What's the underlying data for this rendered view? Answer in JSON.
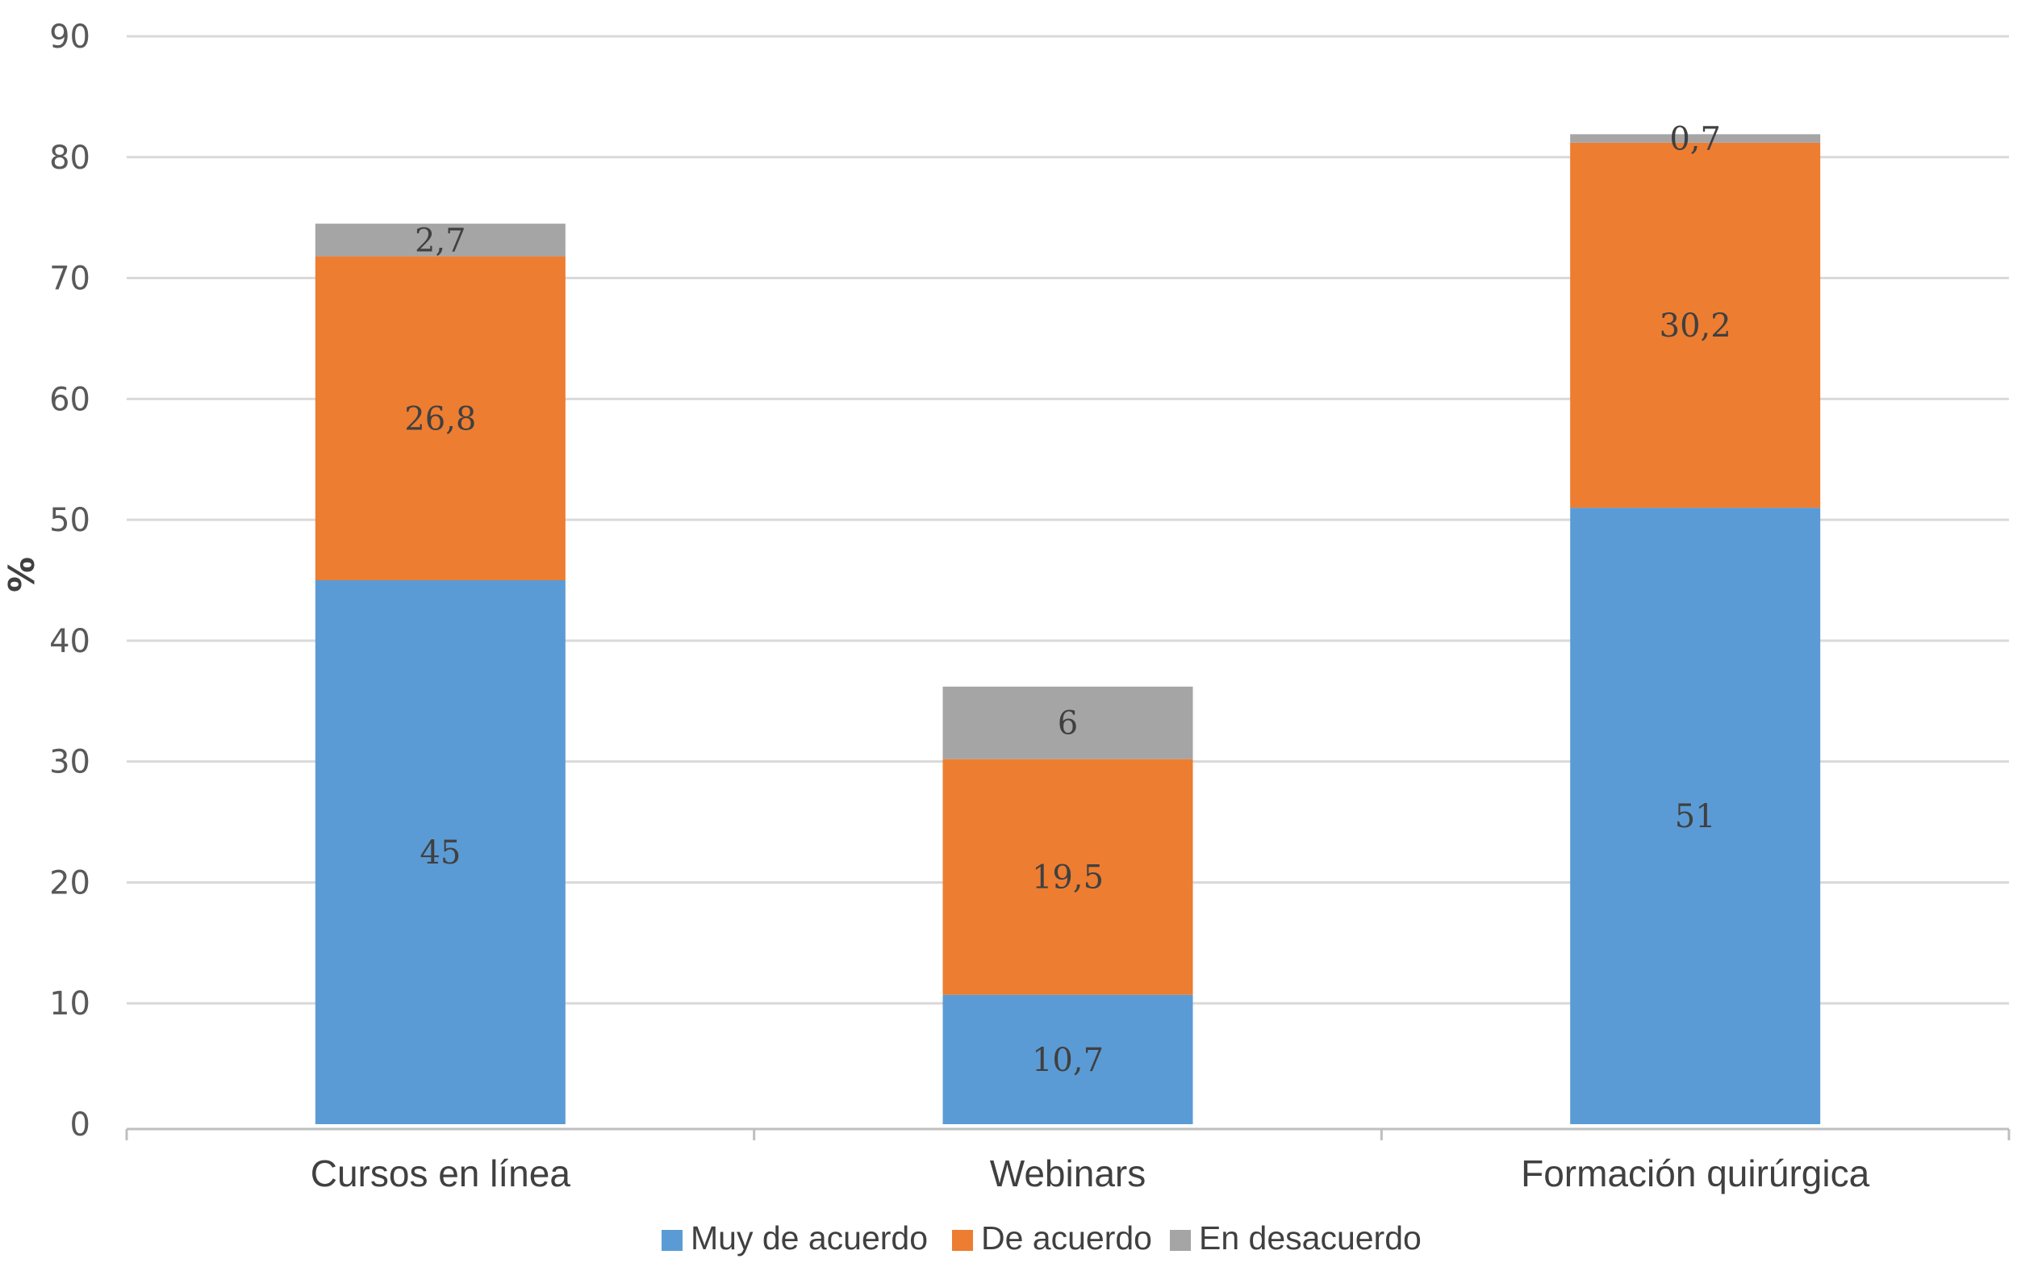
{
  "chart_data": {
    "type": "bar",
    "stacked": true,
    "categories": [
      "Cursos en línea",
      "Webinars",
      "Formación quirúrgica"
    ],
    "series": [
      {
        "name": "Muy de acuerdo",
        "color": "#5b9bd5",
        "values": [
          45,
          10.7,
          51
        ],
        "labels": [
          "45",
          "10,7",
          "51"
        ]
      },
      {
        "name": "De acuerdo",
        "color": "#ed7d31",
        "values": [
          26.8,
          19.5,
          30.2
        ],
        "labels": [
          "26,8",
          "19,5",
          "30,2"
        ]
      },
      {
        "name": "En desacuerdo",
        "color": "#a5a5a5",
        "values": [
          2.7,
          6,
          0.7
        ],
        "labels": [
          "2,7",
          "6",
          "0,7"
        ]
      }
    ],
    "title": "",
    "xlabel": "",
    "ylabel": "%",
    "ylim": [
      0,
      90
    ],
    "yticks": [
      0,
      10,
      20,
      30,
      40,
      50,
      60,
      70,
      80,
      90
    ],
    "grid": true,
    "legend_position": "bottom"
  }
}
